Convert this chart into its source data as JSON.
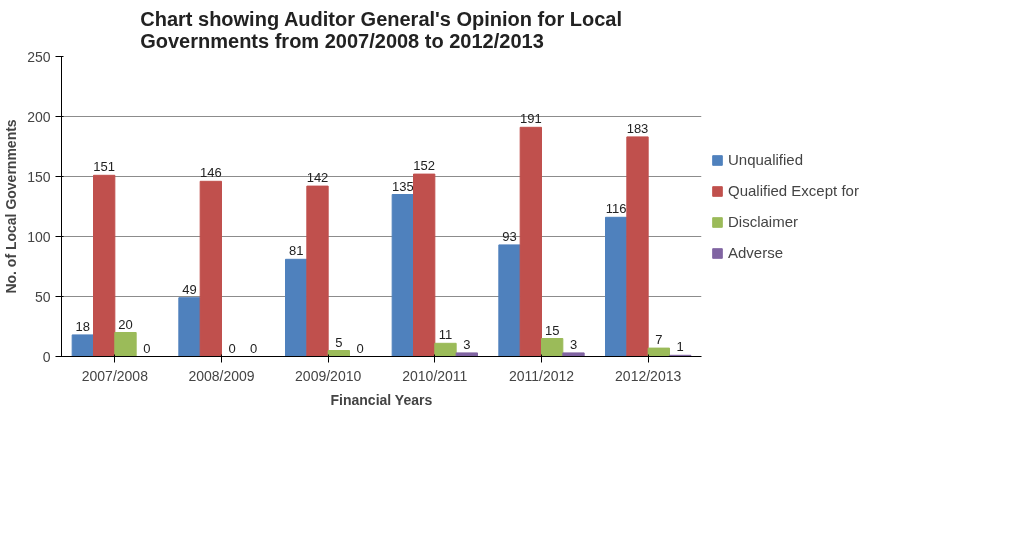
{
  "chart_data": {
    "type": "bar",
    "title": "Chart showing Auditor General's Opinion for Local\nGovernments from 2007/2008 to 2012/2013",
    "xlabel": "Financial Years",
    "ylabel": "No. of Local Governments",
    "categories": [
      "2007/2008",
      "2008/2009",
      "2009/2010",
      "2010/2011",
      "2011/2012",
      "2012/2013"
    ],
    "series": [
      {
        "name": "Unqualified",
        "color": "#4f81bd",
        "values": [
          18,
          49,
          81,
          135,
          93,
          116
        ]
      },
      {
        "name": "Qualified Except for",
        "color": "#c0504d",
        "values": [
          151,
          146,
          142,
          152,
          191,
          183
        ]
      },
      {
        "name": "Disclaimer",
        "color": "#9bbb59",
        "values": [
          20,
          0,
          5,
          11,
          15,
          7
        ]
      },
      {
        "name": "Adverse",
        "color": "#8064a2",
        "values": [
          0,
          0,
          0,
          3,
          3,
          1
        ]
      }
    ],
    "ylim": [
      0,
      250
    ],
    "yticks": [
      0,
      50,
      100,
      150,
      200,
      250
    ],
    "grid": "y",
    "legend": "right",
    "data_labels": true
  }
}
